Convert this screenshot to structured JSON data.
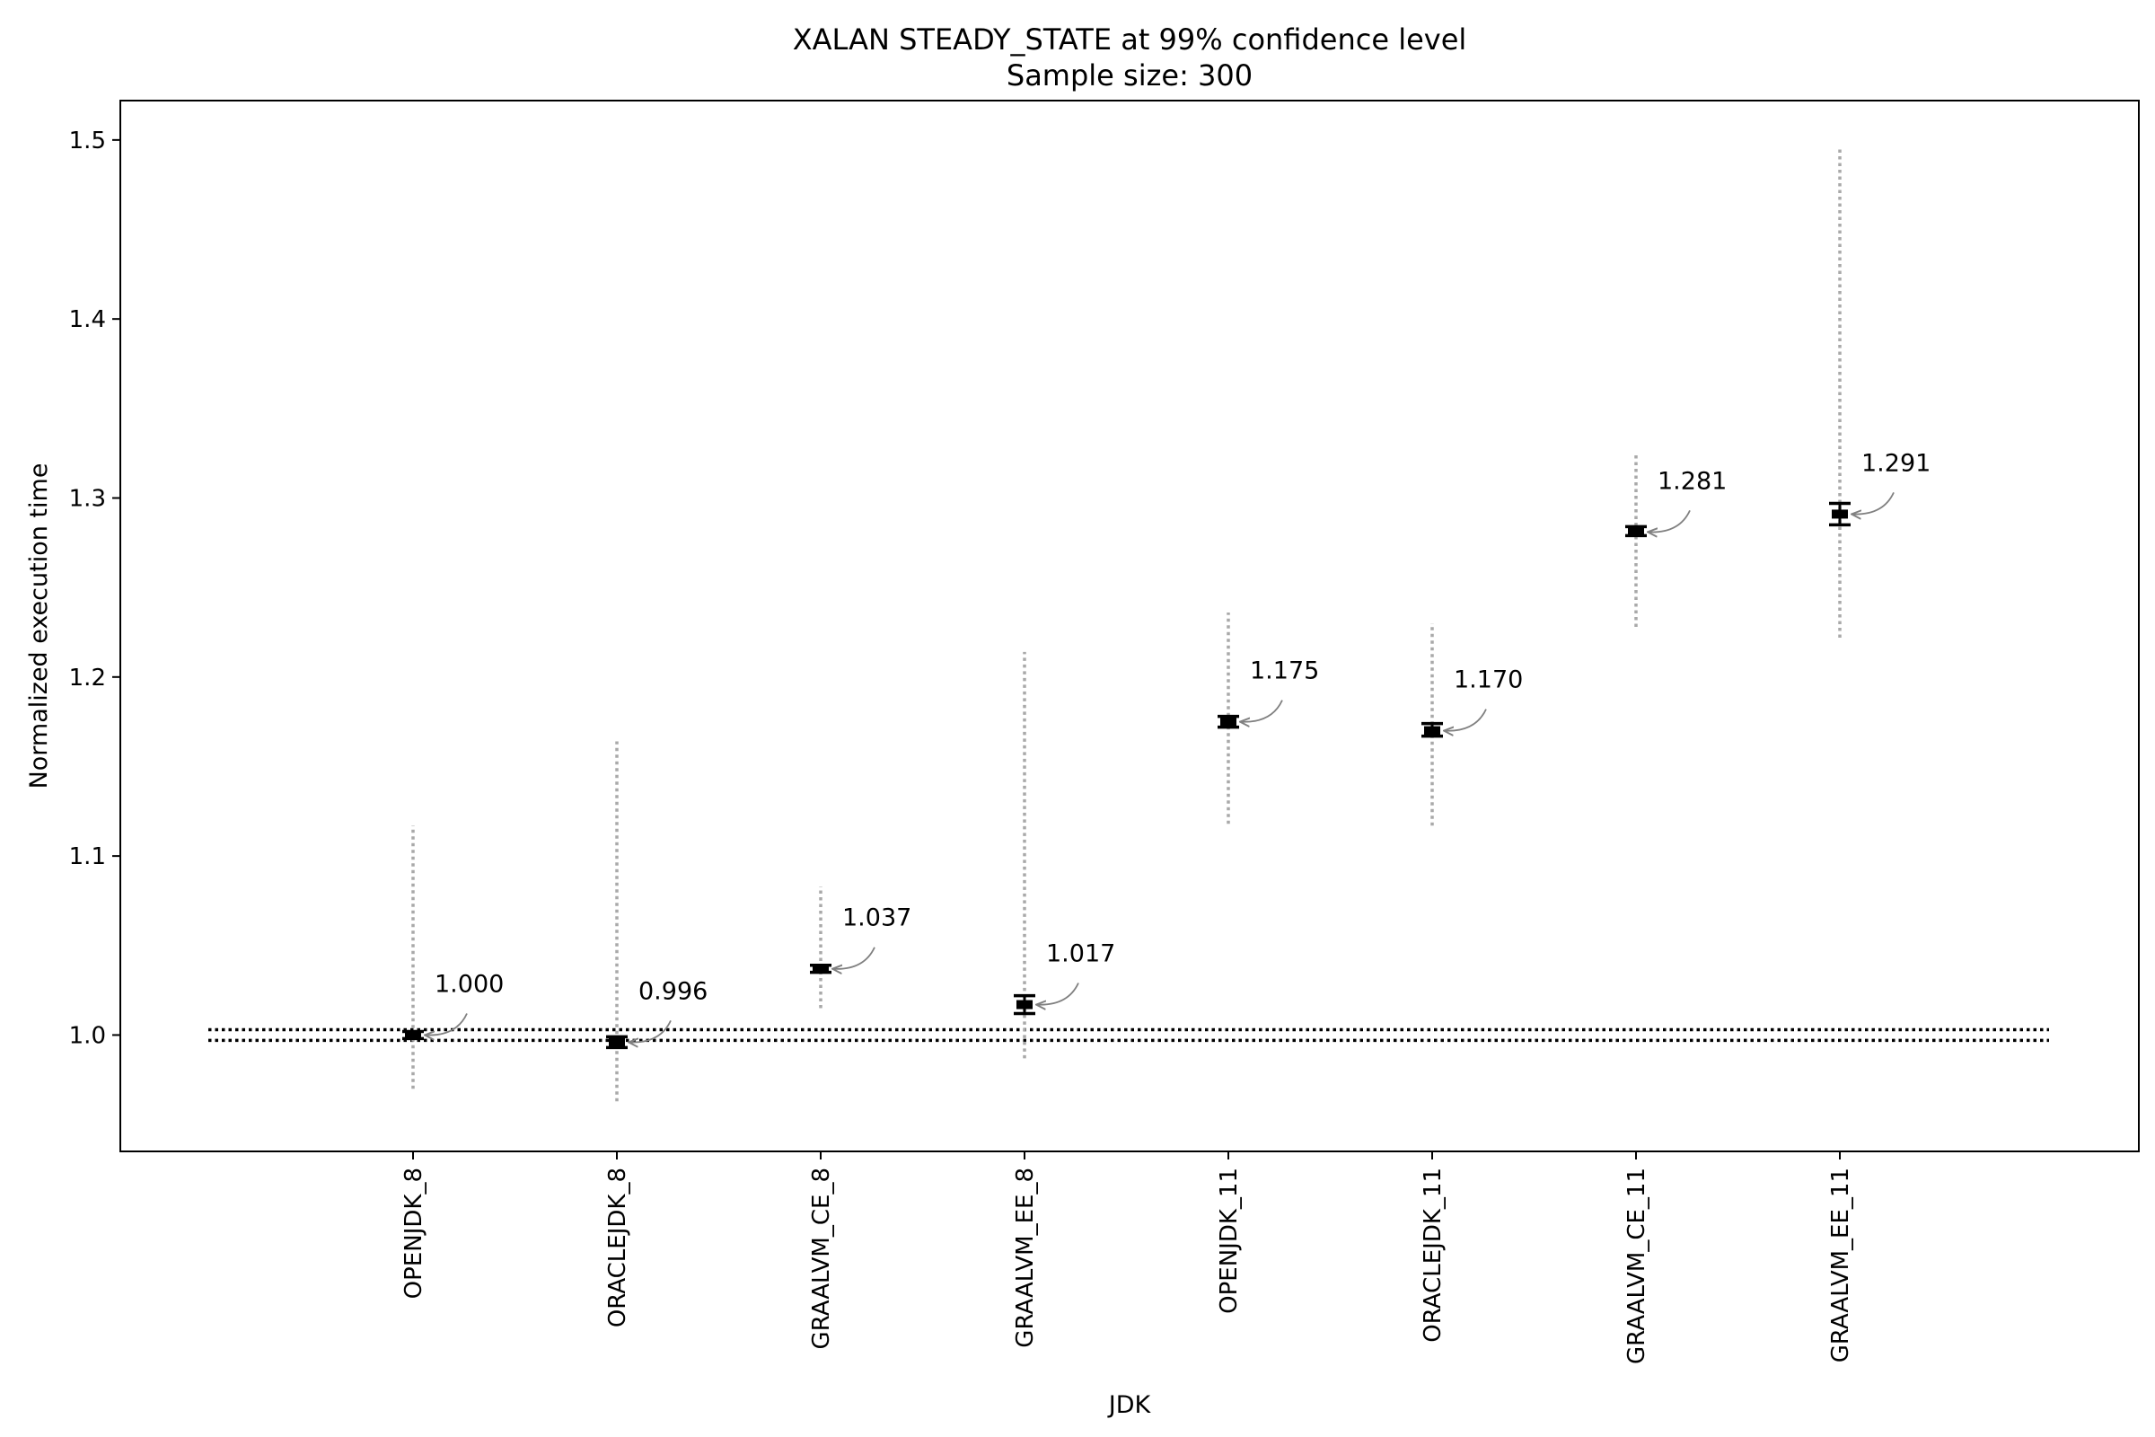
{
  "chart_data": {
    "type": "scatter",
    "title": "XALAN STEADY_STATE at 99% confidence level",
    "subtitle": "Sample size: 300",
    "xlabel": "JDK",
    "ylabel": "Normalized execution time",
    "ylim": [
      0.935,
      1.522
    ],
    "yticks": [
      "1.0",
      "1.1",
      "1.2",
      "1.3",
      "1.4",
      "1.5"
    ],
    "ytick_values": [
      1.0,
      1.1,
      1.2,
      1.3,
      1.4,
      1.5
    ],
    "grid": false,
    "legend": "none",
    "reference_band": [
      0.997,
      1.003
    ],
    "categories": [
      "OPENJDK_8",
      "ORACLEJDK_8",
      "GRAALVM_CE_8",
      "GRAALVM_EE_8",
      "OPENJDK_11",
      "ORACLEJDK_11",
      "GRAALVM_CE_11",
      "GRAALVM_EE_11"
    ],
    "values": [
      1.0,
      0.996,
      1.037,
      1.017,
      1.175,
      1.17,
      1.281,
      1.291
    ],
    "annotations": [
      "1.000",
      "0.996",
      "1.037",
      "1.017",
      "1.175",
      "1.170",
      "1.281",
      "1.291"
    ],
    "ci_low": [
      0.998,
      0.993,
      1.035,
      1.012,
      1.172,
      1.167,
      1.279,
      1.285
    ],
    "ci_high": [
      1.002,
      0.999,
      1.039,
      1.022,
      1.178,
      1.174,
      1.284,
      1.297
    ],
    "range_low": [
      0.97,
      0.963,
      1.015,
      0.987,
      1.118,
      1.117,
      1.228,
      1.222
    ],
    "range_high": [
      1.117,
      1.164,
      1.083,
      1.214,
      1.236,
      1.23,
      1.324,
      1.495
    ],
    "colors": {
      "ci": "#000000",
      "range": "#a9a9a9",
      "arrow": "#808080",
      "reference": "#000000"
    }
  }
}
